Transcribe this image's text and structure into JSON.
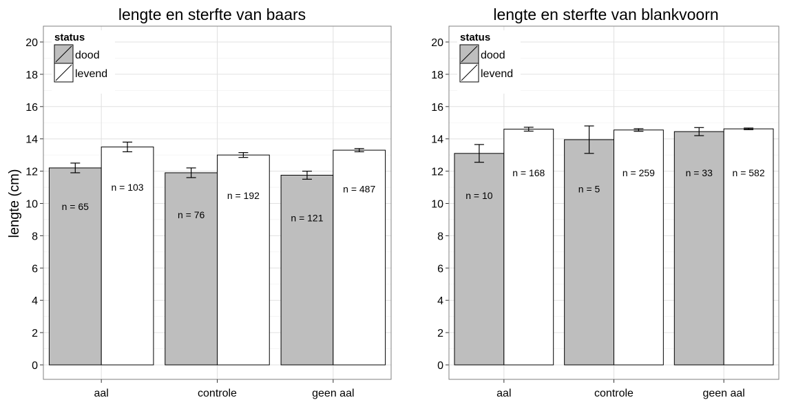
{
  "chart_data": [
    {
      "type": "bar",
      "title": "lengte en sterfte van baars",
      "ylabel": "lengte (cm)",
      "xlabel": "",
      "categories": [
        "aal",
        "controle",
        "geen aal"
      ],
      "ylim": [
        0,
        20
      ],
      "yticks": [
        0,
        2,
        4,
        6,
        8,
        10,
        12,
        14,
        16,
        18,
        20
      ],
      "grid": true,
      "legend": {
        "title": "status",
        "position": "top-left"
      },
      "series": [
        {
          "name": "dood",
          "color": "#bebebe",
          "values": [
            12.2,
            11.9,
            11.75
          ],
          "error": [
            0.3,
            0.3,
            0.25
          ],
          "labels": [
            "n = 65",
            "n = 76",
            "n = 121"
          ],
          "label_y": [
            9.8,
            9.3,
            9.1
          ]
        },
        {
          "name": "levend",
          "color": "#ffffff",
          "values": [
            13.5,
            13.0,
            13.3
          ],
          "error": [
            0.3,
            0.15,
            0.1
          ],
          "labels": [
            "n = 103",
            "n = 192",
            "n = 487"
          ],
          "label_y": [
            11.0,
            10.5,
            10.9
          ]
        }
      ]
    },
    {
      "type": "bar",
      "title": "lengte en sterfte van blankvoorn",
      "ylabel": "",
      "xlabel": "",
      "categories": [
        "aal",
        "controle",
        "geen aal"
      ],
      "ylim": [
        0,
        20
      ],
      "yticks": [
        0,
        2,
        4,
        6,
        8,
        10,
        12,
        14,
        16,
        18,
        20
      ],
      "grid": true,
      "legend": {
        "title": "status",
        "position": "top-left"
      },
      "series": [
        {
          "name": "dood",
          "color": "#bebebe",
          "values": [
            13.1,
            13.95,
            14.45
          ],
          "error": [
            0.55,
            0.85,
            0.25
          ],
          "labels": [
            "n = 10",
            "n = 5",
            "n = 33"
          ],
          "label_y": [
            10.5,
            10.9,
            11.9
          ]
        },
        {
          "name": "levend",
          "color": "#ffffff",
          "values": [
            14.6,
            14.55,
            14.62
          ],
          "error": [
            0.12,
            0.08,
            0.05
          ],
          "labels": [
            "n = 168",
            "n = 259",
            "n = 582"
          ],
          "label_y": [
            11.9,
            11.9,
            11.9
          ]
        }
      ]
    }
  ]
}
